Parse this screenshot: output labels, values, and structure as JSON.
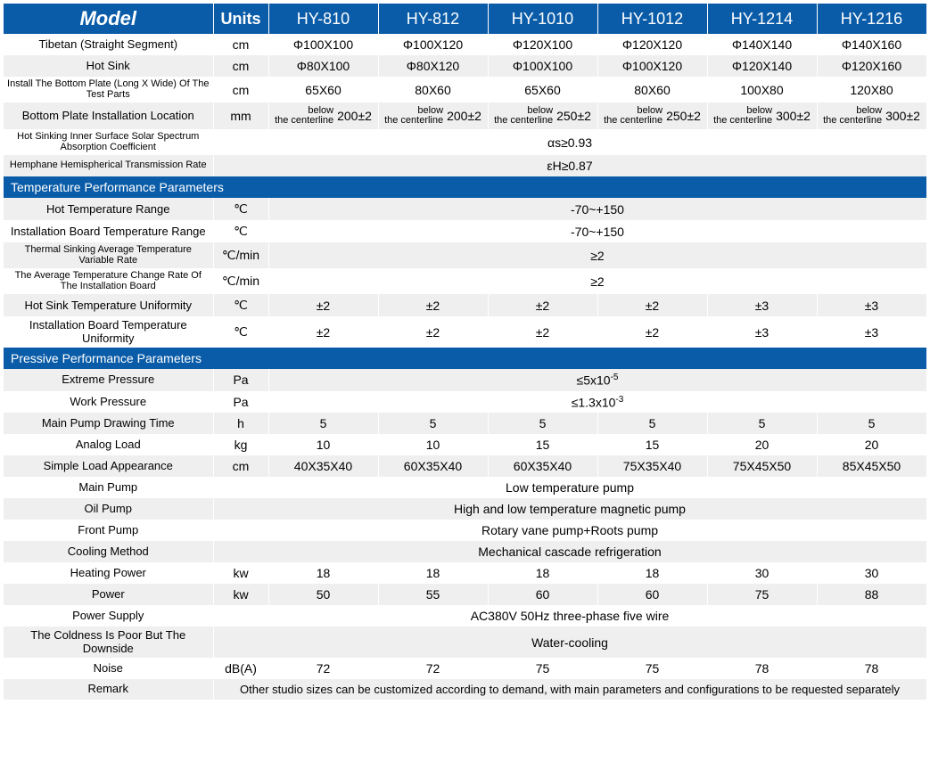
{
  "colors": {
    "header_bg": "#0a5ca8",
    "header_fg": "#ffffff",
    "row_even": "#ffffff",
    "row_odd": "#efefef"
  },
  "header": {
    "model": "Model",
    "units": "Units",
    "cols": [
      "HY-810",
      "HY-812",
      "HY-1010",
      "HY-1012",
      "HY-1214",
      "HY-1216"
    ]
  },
  "rows": [
    {
      "id": "tibetan",
      "label": "Tibetan (Straight Segment)",
      "unit": "cm",
      "vals": [
        "Φ100X100",
        "Φ100X120",
        "Φ120X100",
        "Φ120X120",
        "Φ140X140",
        "Φ140X160"
      ],
      "bg": 0
    },
    {
      "id": "hotsink",
      "label": "Hot Sink",
      "unit": "cm",
      "vals": [
        "Φ80X100",
        "Φ80X120",
        "Φ100X100",
        "Φ100X120",
        "Φ120X140",
        "Φ120X160"
      ],
      "bg": 1
    },
    {
      "id": "bottomplate",
      "label": "Install The Bottom Plate (Long X Wide) Of The Test Parts",
      "label_small": true,
      "unit": "cm",
      "vals": [
        "65X60",
        "80X60",
        "65X60",
        "80X60",
        "100X80",
        "120X80"
      ],
      "bg": 0
    },
    {
      "id": "bplloc",
      "label": "Bottom Plate Installation Location",
      "unit": "mm",
      "kind": "below",
      "below": [
        "200±2",
        "200±2",
        "250±2",
        "250±2",
        "300±2",
        "300±2"
      ],
      "bg": 1
    },
    {
      "id": "absorp",
      "label": "Hot Sinking Inner Surface Solar Spectrum Absorption Coefficient",
      "label_small": true,
      "span": "αs≥0.93",
      "bg": 0,
      "span_includes_unit": true
    },
    {
      "id": "hemph",
      "label": "Hemphane Hemispherical Transmission Rate",
      "label_small": true,
      "span": "εH≥0.87",
      "bg": 1,
      "span_includes_unit": true
    }
  ],
  "section1": "Temperature Performance Parameters",
  "rows2": [
    {
      "id": "hottemprange",
      "label": "Hot Temperature Range",
      "unit": "℃",
      "span": "-70~+150",
      "bg": 1
    },
    {
      "id": "boardtemprange",
      "label": "Installation Board Temperature Range",
      "unit": "℃",
      "span": "-70~+150",
      "bg": 0
    },
    {
      "id": "sinkrate",
      "label": "Thermal Sinking Average Temperature Variable Rate",
      "label_small": true,
      "unit": "℃/min",
      "span": "≥2",
      "bg": 1
    },
    {
      "id": "boardrate",
      "label": "The Average Temperature Change Rate Of The Installation Board",
      "label_small": true,
      "unit": "℃/min",
      "span": "≥2",
      "bg": 0
    },
    {
      "id": "sinkunif",
      "label": "Hot Sink Temperature Uniformity",
      "unit": "℃",
      "vals": [
        "±2",
        "±2",
        "±2",
        "±2",
        "±3",
        "±3"
      ],
      "bg": 1
    },
    {
      "id": "boardunif",
      "label": "Installation Board Temperature Uniformity",
      "unit": "℃",
      "vals": [
        "±2",
        "±2",
        "±2",
        "±2",
        "±3",
        "±3"
      ],
      "bg": 0
    }
  ],
  "section2": "Pressive Performance Parameters",
  "rows3": [
    {
      "id": "extpress",
      "label": "Extreme Pressure",
      "unit": "Pa",
      "span_html": true,
      "span": "≤5x10<sup class='sup'>-5</sup>",
      "bg": 1
    },
    {
      "id": "workpress",
      "label": "Work Pressure",
      "unit": "Pa",
      "span_html": true,
      "span": "≤1.3x10<sup class='sup'>-3</sup>",
      "bg": 0
    },
    {
      "id": "drawtime",
      "label": "Main Pump Drawing Time",
      "unit": "h",
      "vals": [
        "5",
        "5",
        "5",
        "5",
        "5",
        "5"
      ],
      "bg": 1
    },
    {
      "id": "analogload",
      "label": "Analog Load",
      "unit": "kg",
      "vals": [
        "10",
        "10",
        "15",
        "15",
        "20",
        "20"
      ],
      "bg": 0
    },
    {
      "id": "loadappear",
      "label": "Simple Load Appearance",
      "unit": "cm",
      "vals": [
        "40X35X40",
        "60X35X40",
        "60X35X40",
        "75X35X40",
        "75X45X50",
        "85X45X50"
      ],
      "bg": 1
    },
    {
      "id": "mainpump",
      "label": "Main Pump",
      "span": "Low temperature pump",
      "bg": 0,
      "span_includes_unit": true
    },
    {
      "id": "oilpump",
      "label": "Oil Pump",
      "span": "High and low temperature magnetic pump",
      "bg": 1,
      "span_includes_unit": true
    },
    {
      "id": "frontpump",
      "label": "Front Pump",
      "span": "Rotary vane pump+Roots pump",
      "bg": 0,
      "span_includes_unit": true
    },
    {
      "id": "cooling",
      "label": "Cooling Method",
      "span": "Mechanical cascade refrigeration",
      "bg": 1,
      "span_includes_unit": true
    },
    {
      "id": "heatpower",
      "label": "Heating Power",
      "unit": "kw",
      "vals": [
        "18",
        "18",
        "18",
        "18",
        "30",
        "30"
      ],
      "bg": 0
    },
    {
      "id": "power",
      "label": "Power",
      "unit": "kw",
      "vals": [
        "50",
        "55",
        "60",
        "60",
        "75",
        "88"
      ],
      "bg": 1
    },
    {
      "id": "supply",
      "label": "Power Supply",
      "span": "AC380V 50Hz three-phase five wire",
      "bg": 0,
      "span_includes_unit": true
    },
    {
      "id": "coldness",
      "label": "The Coldness Is Poor But The Downside",
      "span": "Water-cooling",
      "bg": 1,
      "span_includes_unit": true
    },
    {
      "id": "noise",
      "label": "Noise",
      "unit": "dB(A)",
      "vals": [
        "72",
        "72",
        "75",
        "75",
        "78",
        "78"
      ],
      "bg": 0
    },
    {
      "id": "remark",
      "label": "Remark",
      "span": "Other studio sizes can be customized according to demand, with main parameters and configurations to be requested separately",
      "bg": 1,
      "span_includes_unit": true,
      "remark": true
    }
  ],
  "below_label": "below the centerline"
}
